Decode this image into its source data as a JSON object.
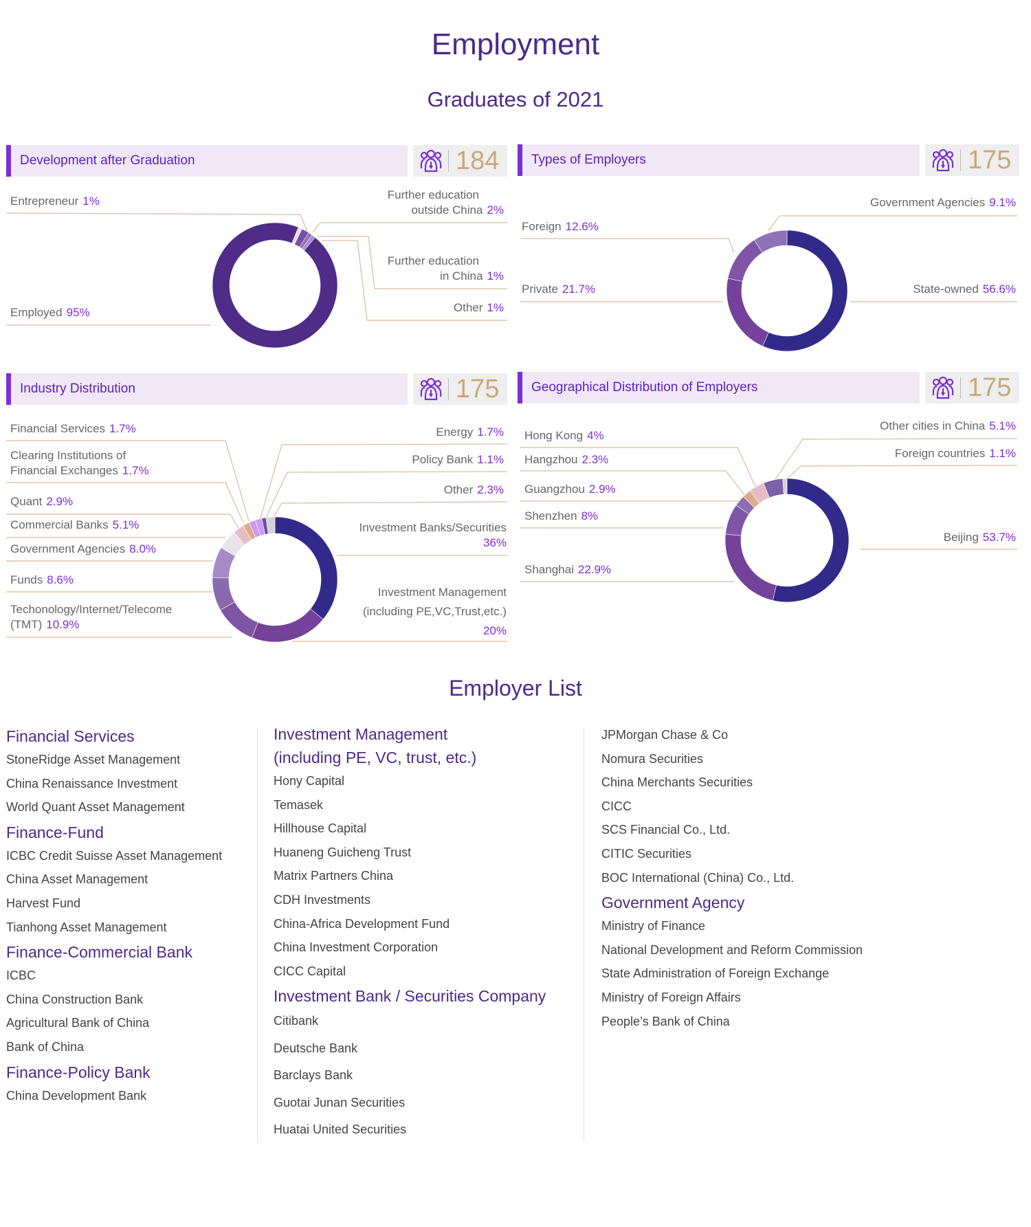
{
  "page": {
    "title": "Employment",
    "subtitle": "Graduates of 2021",
    "colors": {
      "accent": "#7b2fd6",
      "title": "#4b2a8a",
      "header_bg": "#f0e8f7",
      "count": "#c9a97a",
      "leader": "#d6bc9c"
    }
  },
  "panels": [
    {
      "title": "Development after Graduation",
      "count": "184",
      "icon": "people-group-icon"
    },
    {
      "title": "Types of Employers",
      "count": "175",
      "icon": "people-group-icon"
    },
    {
      "title": "Industry Distribution",
      "count": "175",
      "icon": "people-group-icon"
    },
    {
      "title": "Geographical Distribution of Employers",
      "count": "175",
      "icon": "people-group-icon"
    }
  ],
  "chart_data": [
    {
      "type": "pie",
      "title": "Development after Graduation",
      "categories": [
        "Entrepreneur",
        "Further education outside China",
        "Further education in China",
        "Other",
        "Employed"
      ],
      "values": [
        1,
        2,
        1,
        1,
        95
      ],
      "value_labels": [
        "1%",
        "2%",
        "1%",
        "1%",
        "95%"
      ],
      "colors": [
        "#e4e0ea",
        "#7a4fa6",
        "#8e6ab6",
        "#a68bc8",
        "#4f2c88"
      ]
    },
    {
      "type": "pie",
      "title": "Types of Employers",
      "categories": [
        "State-owned",
        "Private",
        "Foreign",
        "Government Agencies"
      ],
      "values": [
        56.6,
        21.7,
        12.6,
        9.1
      ],
      "value_labels": [
        "56.6%",
        "21.7%",
        "12.6%",
        "9.1%"
      ],
      "colors": [
        "#322a8a",
        "#74429a",
        "#7f55a6",
        "#8f72b6"
      ]
    },
    {
      "type": "pie",
      "title": "Industry Distribution",
      "categories": [
        "Investment Banks/Securities",
        "Investment Management (including PE,VC,Trust,etc.)",
        "Techonology/Internet/Telecome (TMT)",
        "Funds",
        "Government Agencies",
        "Commercial Banks",
        "Quant",
        "Clearing Institutions of Financial Exchanges",
        "Financial Services",
        "Energy",
        "Policy Bank",
        "Other"
      ],
      "values": [
        36,
        20,
        10.9,
        8.6,
        8.0,
        5.1,
        2.9,
        1.7,
        1.7,
        1.7,
        1.1,
        2.3
      ],
      "value_labels": [
        "36%",
        "20%",
        "10.9%",
        "8.6%",
        "8.0%",
        "5.1%",
        "2.9%",
        "1.7%",
        "1.7%",
        "1.7%",
        "1.1%",
        "2.3%"
      ],
      "colors": [
        "#322a8a",
        "#74429a",
        "#7f55a6",
        "#8a6aae",
        "#a88bc6",
        "#e8e4ea",
        "#e6bcc4",
        "#e0a98a",
        "#c99cf2",
        "#c99cf2",
        "#6b4fa6",
        "#d4d2d6"
      ]
    },
    {
      "type": "pie",
      "title": "Geographical Distribution of Employers",
      "categories": [
        "Beijing",
        "Shanghai",
        "Shenzhen",
        "Guangzhou",
        "Hangzhou",
        "Hong Kong",
        "Other cities in China",
        "Foreign countries"
      ],
      "values": [
        53.7,
        22.9,
        8,
        2.9,
        2.3,
        4,
        5.1,
        1.1
      ],
      "value_labels": [
        "53.7%",
        "22.9%",
        "8%",
        "2.9%",
        "2.3%",
        "4%",
        "5.1%",
        "1.1%"
      ],
      "colors": [
        "#322a8a",
        "#74429a",
        "#7f55a6",
        "#8a70b0",
        "#e0a98a",
        "#e6bcc4",
        "#7a62a8",
        "#d4d2d6"
      ]
    }
  ],
  "labels": {
    "c1": {
      "entrepreneur": "Entrepreneur",
      "outside1": "Further education",
      "outside2": "outside China",
      "inchina1": "Further education",
      "inchina2": "in China",
      "other": "Other",
      "employed": "Employed"
    },
    "c3": {
      "clearing1": "Clearing Institutions of",
      "clearing2": "Financial Exchanges",
      "tmt1": "Techonology/Internet/Telecome",
      "tmt2": "(TMT)",
      "ib": "Investment Banks/Securities",
      "im1": "Investment Management",
      "im2": "(including PE,VC,Trust,etc.)"
    }
  },
  "employer_list": {
    "title": "Employer List",
    "columns": [
      [
        {
          "heading": "Financial Services",
          "items": [
            "StoneRidge Asset Management",
            "China Renaissance Investment",
            "World Quant Asset Management"
          ]
        },
        {
          "heading": "Finance-Fund",
          "items": [
            "ICBC Credit Suisse Asset Management",
            "China Asset Management",
            "Harvest Fund",
            "Tianhong Asset Management"
          ]
        },
        {
          "heading": "Finance-Commercial Bank",
          "items": [
            "ICBC",
            "China Construction Bank",
            "Agricultural Bank of China",
            "Bank of China"
          ]
        },
        {
          "heading": "Finance-Policy Bank",
          "items": [
            "China Development Bank"
          ]
        }
      ],
      [
        {
          "heading": "Investment Management",
          "heading2": "(including PE, VC, trust, etc.)",
          "items": [
            "Hony Capital",
            "Temasek",
            "Hillhouse Capital",
            "Huaneng Guicheng Trust",
            "Matrix Partners China",
            "CDH Investments",
            "China-Africa Development Fund",
            "China Investment Corporation",
            "CICC Capital"
          ]
        },
        {
          "heading": "Investment Bank / Securities Company",
          "items": [
            "Citibank",
            "Deutsche Bank",
            "Barclays Bank",
            "Guotai Junan Securities",
            "Huatai United Securities"
          ]
        }
      ],
      [
        {
          "heading": "",
          "items": [
            "JPMorgan Chase & Co",
            "Nomura Securities",
            "China Merchants Securities",
            "CICC",
            "SCS Financial Co., Ltd.",
            "CITIC Securities",
            "BOC International (China) Co., Ltd."
          ]
        },
        {
          "heading": "Government Agency",
          "items": [
            "Ministry of Finance",
            "National Development and Reform Commission",
            "State Administration of Foreign Exchange",
            "Ministry of Foreign Affairs",
            "People’s Bank of China"
          ]
        }
      ]
    ]
  }
}
